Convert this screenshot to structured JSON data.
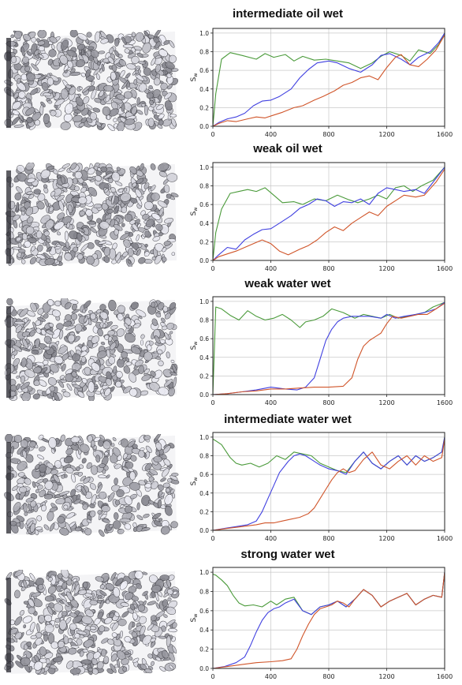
{
  "colors": {
    "green": "#4a9a3a",
    "blue": "#4040e0",
    "red": "#d0552a",
    "black": "#222222",
    "grid": "#c8c8c8"
  },
  "panels": [
    {
      "title": "intermediate oil wet"
    },
    {
      "title": "weak oil wet"
    },
    {
      "title": "weak water wet"
    },
    {
      "title": "intermediate water wet"
    },
    {
      "title": "strong water wet"
    }
  ],
  "chart_data": [
    {
      "type": "line",
      "title": "intermediate oil wet",
      "ylabel": "S_w",
      "xlabel": "",
      "xlim": [
        0,
        1600
      ],
      "ylim": [
        0,
        1.05
      ],
      "xticks": [
        0,
        400,
        800,
        1200,
        1600
      ],
      "yticks": [
        0.0,
        0.2,
        0.4,
        0.6,
        0.8,
        1.0
      ],
      "grid": true,
      "series": [
        {
          "color": "green",
          "x": [
            0,
            20,
            60,
            120,
            200,
            300,
            360,
            420,
            500,
            560,
            620,
            700,
            780,
            860,
            940,
            1020,
            1100,
            1160,
            1220,
            1300,
            1360,
            1420,
            1500,
            1560,
            1600
          ],
          "y": [
            0.0,
            0.35,
            0.72,
            0.79,
            0.76,
            0.72,
            0.78,
            0.74,
            0.77,
            0.7,
            0.75,
            0.71,
            0.72,
            0.7,
            0.68,
            0.62,
            0.68,
            0.75,
            0.8,
            0.76,
            0.7,
            0.82,
            0.78,
            0.88,
            1.0
          ]
        },
        {
          "color": "blue",
          "x": [
            0,
            40,
            100,
            160,
            220,
            280,
            340,
            400,
            460,
            540,
            600,
            660,
            720,
            800,
            860,
            940,
            1020,
            1100,
            1160,
            1220,
            1300,
            1360,
            1420,
            1500,
            1560,
            1600
          ],
          "y": [
            0.0,
            0.04,
            0.08,
            0.1,
            0.14,
            0.22,
            0.27,
            0.28,
            0.32,
            0.4,
            0.52,
            0.61,
            0.68,
            0.7,
            0.68,
            0.62,
            0.58,
            0.66,
            0.76,
            0.78,
            0.72,
            0.66,
            0.74,
            0.8,
            0.9,
            1.0
          ]
        },
        {
          "color": "red",
          "x": [
            0,
            40,
            100,
            160,
            240,
            300,
            360,
            420,
            480,
            560,
            620,
            700,
            760,
            840,
            900,
            960,
            1020,
            1080,
            1140,
            1200,
            1260,
            1300,
            1360,
            1420,
            1480,
            1540,
            1600
          ],
          "y": [
            0.0,
            0.03,
            0.06,
            0.05,
            0.08,
            0.1,
            0.09,
            0.12,
            0.15,
            0.2,
            0.22,
            0.28,
            0.32,
            0.38,
            0.44,
            0.47,
            0.52,
            0.54,
            0.5,
            0.63,
            0.74,
            0.77,
            0.66,
            0.64,
            0.72,
            0.82,
            0.98
          ]
        }
      ]
    },
    {
      "type": "line",
      "title": "weak oil wet",
      "ylabel": "S_w",
      "xlabel": "",
      "xlim": [
        0,
        1600
      ],
      "ylim": [
        0,
        1.05
      ],
      "xticks": [
        0,
        400,
        800,
        1200,
        1600
      ],
      "yticks": [
        0.0,
        0.2,
        0.4,
        0.6,
        0.8,
        1.0
      ],
      "grid": true,
      "series": [
        {
          "color": "green",
          "x": [
            0,
            20,
            60,
            120,
            180,
            240,
            300,
            360,
            420,
            480,
            560,
            620,
            700,
            780,
            860,
            940,
            1000,
            1080,
            1140,
            1200,
            1260,
            1320,
            1380,
            1440,
            1520,
            1600
          ],
          "y": [
            0.0,
            0.3,
            0.55,
            0.72,
            0.74,
            0.76,
            0.74,
            0.78,
            0.7,
            0.62,
            0.63,
            0.6,
            0.66,
            0.64,
            0.7,
            0.65,
            0.62,
            0.66,
            0.7,
            0.66,
            0.78,
            0.8,
            0.74,
            0.8,
            0.86,
            1.0
          ]
        },
        {
          "color": "blue",
          "x": [
            0,
            40,
            100,
            160,
            220,
            280,
            340,
            400,
            460,
            540,
            600,
            660,
            720,
            780,
            840,
            900,
            960,
            1020,
            1080,
            1140,
            1200,
            1260,
            1320,
            1400,
            1460,
            1540,
            1600
          ],
          "y": [
            0.0,
            0.06,
            0.14,
            0.12,
            0.22,
            0.28,
            0.33,
            0.34,
            0.4,
            0.48,
            0.56,
            0.6,
            0.66,
            0.64,
            0.58,
            0.63,
            0.62,
            0.66,
            0.6,
            0.72,
            0.78,
            0.76,
            0.74,
            0.76,
            0.72,
            0.88,
            1.0
          ]
        },
        {
          "color": "red",
          "x": [
            0,
            40,
            100,
            160,
            220,
            280,
            340,
            400,
            460,
            520,
            600,
            660,
            720,
            780,
            840,
            900,
            960,
            1020,
            1080,
            1140,
            1200,
            1260,
            1320,
            1400,
            1460,
            1540,
            1600
          ],
          "y": [
            0.0,
            0.04,
            0.07,
            0.1,
            0.14,
            0.18,
            0.22,
            0.18,
            0.1,
            0.06,
            0.12,
            0.16,
            0.22,
            0.3,
            0.36,
            0.32,
            0.4,
            0.46,
            0.52,
            0.48,
            0.58,
            0.64,
            0.7,
            0.68,
            0.7,
            0.84,
            0.98
          ]
        }
      ]
    },
    {
      "type": "line",
      "title": "weak water wet",
      "ylabel": "S_w",
      "xlabel": "",
      "xlim": [
        0,
        1600
      ],
      "ylim": [
        0,
        1.05
      ],
      "xticks": [
        0,
        400,
        800,
        1200,
        1600
      ],
      "yticks": [
        0.0,
        0.2,
        0.4,
        0.6,
        0.8,
        1.0
      ],
      "grid": true,
      "series": [
        {
          "color": "green",
          "x": [
            0,
            20,
            60,
            120,
            180,
            240,
            300,
            360,
            420,
            480,
            540,
            600,
            640,
            700,
            760,
            820,
            900,
            980,
            1040,
            1100,
            1160,
            1220,
            1280,
            1340,
            1400,
            1460,
            1520,
            1600
          ],
          "y": [
            0.0,
            0.94,
            0.92,
            0.85,
            0.8,
            0.9,
            0.84,
            0.8,
            0.82,
            0.86,
            0.8,
            0.72,
            0.78,
            0.8,
            0.84,
            0.92,
            0.88,
            0.82,
            0.86,
            0.84,
            0.82,
            0.86,
            0.82,
            0.84,
            0.86,
            0.88,
            0.94,
            0.99
          ]
        },
        {
          "color": "blue",
          "x": [
            0,
            100,
            200,
            300,
            400,
            500,
            580,
            640,
            700,
            740,
            780,
            820,
            860,
            900,
            960,
            1020,
            1080,
            1160,
            1200,
            1260,
            1320,
            1400,
            1460,
            1540,
            1600
          ],
          "y": [
            0.0,
            0.01,
            0.03,
            0.05,
            0.08,
            0.06,
            0.05,
            0.08,
            0.18,
            0.38,
            0.58,
            0.7,
            0.78,
            0.82,
            0.84,
            0.84,
            0.84,
            0.82,
            0.86,
            0.82,
            0.84,
            0.86,
            0.88,
            0.92,
            0.99
          ]
        },
        {
          "color": "red",
          "x": [
            0,
            100,
            200,
            300,
            400,
            500,
            600,
            700,
            800,
            900,
            960,
            1000,
            1040,
            1080,
            1120,
            1160,
            1200,
            1240,
            1300,
            1360,
            1420,
            1480,
            1540,
            1600
          ],
          "y": [
            0.0,
            0.01,
            0.03,
            0.04,
            0.06,
            0.06,
            0.07,
            0.08,
            0.08,
            0.09,
            0.18,
            0.38,
            0.52,
            0.58,
            0.62,
            0.66,
            0.76,
            0.84,
            0.82,
            0.84,
            0.86,
            0.86,
            0.92,
            0.98
          ]
        }
      ]
    },
    {
      "type": "line",
      "title": "intermediate water wet",
      "ylabel": "S_w",
      "xlabel": "",
      "xlim": [
        0,
        1600
      ],
      "ylim": [
        0,
        1.05
      ],
      "xticks": [
        0,
        400,
        800,
        1200,
        1600
      ],
      "yticks": [
        0.0,
        0.2,
        0.4,
        0.6,
        0.8,
        1.0
      ],
      "grid": true,
      "series": [
        {
          "color": "green",
          "x": [
            0,
            20,
            60,
            120,
            160,
            200,
            260,
            320,
            380,
            440,
            500,
            560,
            620,
            680,
            740,
            800,
            860,
            920,
            980,
            1040,
            1100,
            1160,
            1220,
            1280,
            1340,
            1400,
            1460,
            1520,
            1580,
            1600
          ],
          "y": [
            0.98,
            0.96,
            0.92,
            0.78,
            0.72,
            0.7,
            0.72,
            0.68,
            0.72,
            0.8,
            0.76,
            0.84,
            0.82,
            0.8,
            0.72,
            0.68,
            0.64,
            0.62,
            0.74,
            0.84,
            0.72,
            0.66,
            0.74,
            0.8,
            0.7,
            0.8,
            0.74,
            0.78,
            0.84,
            1.0
          ]
        },
        {
          "color": "blue",
          "x": [
            0,
            80,
            160,
            240,
            300,
            340,
            380,
            420,
            460,
            520,
            560,
            600,
            640,
            680,
            740,
            800,
            860,
            920,
            980,
            1040,
            1100,
            1160,
            1220,
            1280,
            1340,
            1400,
            1460,
            1520,
            1580,
            1600
          ],
          "y": [
            0.0,
            0.02,
            0.04,
            0.06,
            0.1,
            0.2,
            0.34,
            0.48,
            0.62,
            0.74,
            0.8,
            0.82,
            0.8,
            0.76,
            0.7,
            0.66,
            0.64,
            0.6,
            0.74,
            0.84,
            0.72,
            0.66,
            0.74,
            0.8,
            0.7,
            0.8,
            0.74,
            0.78,
            0.84,
            1.0
          ]
        },
        {
          "color": "red",
          "x": [
            0,
            100,
            200,
            300,
            360,
            420,
            480,
            540,
            600,
            660,
            700,
            740,
            780,
            820,
            860,
            900,
            940,
            980,
            1040,
            1100,
            1160,
            1220,
            1280,
            1340,
            1400,
            1460,
            1520,
            1580,
            1600
          ],
          "y": [
            0.0,
            0.02,
            0.04,
            0.06,
            0.08,
            0.08,
            0.1,
            0.12,
            0.14,
            0.18,
            0.24,
            0.34,
            0.44,
            0.54,
            0.62,
            0.66,
            0.62,
            0.64,
            0.76,
            0.84,
            0.7,
            0.66,
            0.74,
            0.8,
            0.7,
            0.8,
            0.74,
            0.78,
            0.98
          ]
        }
      ]
    },
    {
      "type": "line",
      "title": "strong water wet",
      "ylabel": "S_w",
      "xlabel": "",
      "xlim": [
        0,
        1600
      ],
      "ylim": [
        0,
        1.05
      ],
      "xticks": [
        0,
        400,
        800,
        1200,
        1600
      ],
      "yticks": [
        0.0,
        0.2,
        0.4,
        0.6,
        0.8,
        1.0
      ],
      "grid": true,
      "series": [
        {
          "color": "green",
          "x": [
            0,
            20,
            60,
            100,
            140,
            180,
            220,
            280,
            340,
            400,
            440,
            500,
            560,
            620,
            680,
            740,
            800,
            860,
            920,
            980,
            1040,
            1100,
            1160,
            1220,
            1280,
            1340,
            1400,
            1460,
            1520,
            1580,
            1600
          ],
          "y": [
            0.98,
            0.97,
            0.92,
            0.86,
            0.76,
            0.68,
            0.65,
            0.66,
            0.64,
            0.7,
            0.66,
            0.72,
            0.74,
            0.6,
            0.56,
            0.64,
            0.66,
            0.7,
            0.64,
            0.72,
            0.82,
            0.76,
            0.64,
            0.7,
            0.74,
            0.78,
            0.66,
            0.72,
            0.76,
            0.74,
            1.0
          ]
        },
        {
          "color": "blue",
          "x": [
            0,
            80,
            160,
            220,
            260,
            300,
            340,
            380,
            420,
            460,
            500,
            560,
            620,
            680,
            740,
            800,
            860,
            920,
            980,
            1040,
            1100,
            1160,
            1220,
            1280,
            1340,
            1400,
            1460,
            1520,
            1580,
            1600
          ],
          "y": [
            0.0,
            0.02,
            0.06,
            0.12,
            0.24,
            0.38,
            0.5,
            0.58,
            0.62,
            0.64,
            0.68,
            0.72,
            0.6,
            0.56,
            0.64,
            0.66,
            0.7,
            0.64,
            0.72,
            0.82,
            0.76,
            0.64,
            0.7,
            0.74,
            0.78,
            0.66,
            0.72,
            0.76,
            0.74,
            1.0
          ]
        },
        {
          "color": "red",
          "x": [
            0,
            100,
            200,
            300,
            400,
            480,
            540,
            580,
            620,
            660,
            700,
            740,
            780,
            820,
            860,
            900,
            940,
            980,
            1040,
            1100,
            1160,
            1220,
            1280,
            1340,
            1400,
            1460,
            1520,
            1580,
            1600
          ],
          "y": [
            0.0,
            0.02,
            0.04,
            0.06,
            0.07,
            0.08,
            0.1,
            0.2,
            0.34,
            0.46,
            0.56,
            0.62,
            0.64,
            0.66,
            0.7,
            0.68,
            0.64,
            0.72,
            0.82,
            0.76,
            0.64,
            0.7,
            0.74,
            0.78,
            0.66,
            0.72,
            0.76,
            0.74,
            1.0
          ]
        }
      ]
    }
  ]
}
